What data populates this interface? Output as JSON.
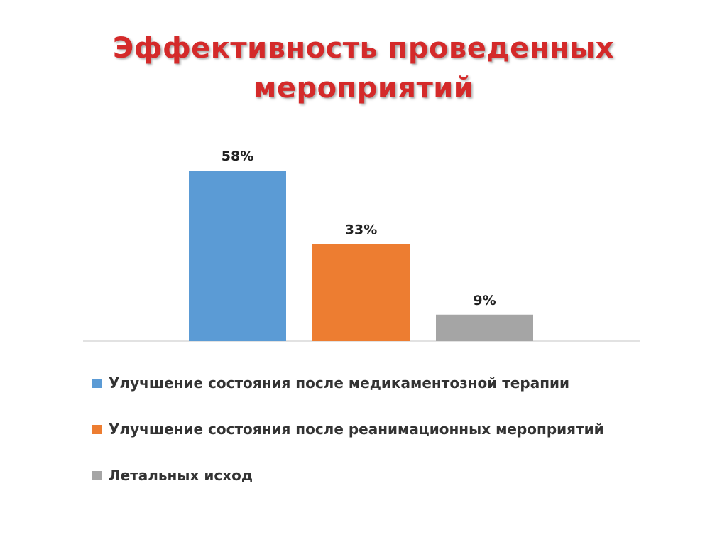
{
  "title_lines": [
    "Эффективность проведенных",
    "мероприятий"
  ],
  "chart_data": {
    "type": "bar",
    "title": "Эффективность проведенных мероприятий",
    "categories": [
      "Улучшение состояния после медикаментозной терапии",
      "Улучшение состояния после реанимационных мероприятий",
      "Летальных исход"
    ],
    "values": [
      58,
      33,
      9
    ],
    "data_labels": [
      "58%",
      "33%",
      "9%"
    ],
    "colors": [
      "#5b9bd5",
      "#ed7d31",
      "#a5a5a5"
    ],
    "ylim": [
      0,
      58
    ],
    "grid": false,
    "legend_position": "bottom",
    "axis_color": "#d9d9d9"
  }
}
